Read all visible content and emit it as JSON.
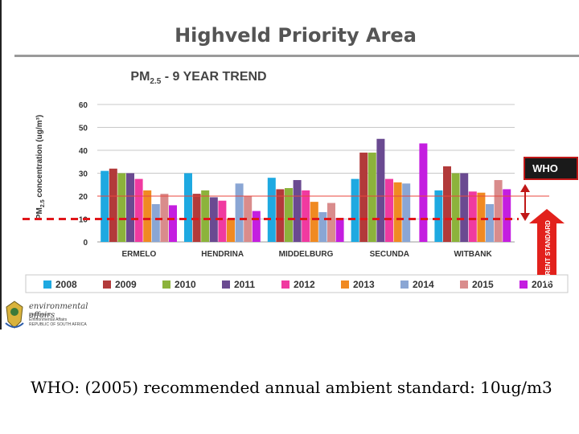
{
  "slide": {
    "title": "Highveld Priority Area",
    "footnote": "WHO: (2005) recommended annual ambient standard: 10ug/m3",
    "logo_text": "environmental affairs",
    "logo_subtext": [
      "Department:",
      "Environmental Affairs",
      "REPUBLIC OF SOUTH AFRICA"
    ]
  },
  "chart_data": {
    "type": "bar",
    "title_pre": "PM",
    "title_sub": "2.5",
    "title_post": " - 9 YEAR TREND",
    "ylabel_pre": "PM",
    "ylabel_sub": "2.5",
    "ylabel_post": " concentration  (ug/m³)",
    "ylim": [
      0,
      60
    ],
    "yticks": [
      "0",
      "10",
      "20",
      "30",
      "40",
      "50",
      "60"
    ],
    "grid": true,
    "categories": [
      "ERMELO",
      "HENDRINA",
      "MIDDELBURG",
      "SECUNDA",
      "WITBANK"
    ],
    "series": [
      {
        "name": "2008",
        "color": "#1ea9e1",
        "values": [
          31,
          30,
          28,
          27.5,
          22.5
        ]
      },
      {
        "name": "2009",
        "color": "#b23a3a",
        "values": [
          32,
          21,
          23,
          39,
          33
        ]
      },
      {
        "name": "2010",
        "color": "#8cb33b",
        "values": [
          30,
          22.5,
          23.5,
          39,
          30
        ]
      },
      {
        "name": "2011",
        "color": "#6a4a91",
        "values": [
          30,
          19.5,
          27,
          45,
          30
        ]
      },
      {
        "name": "2012",
        "color": "#f03aa0",
        "values": [
          27.5,
          18,
          22.5,
          27.5,
          22
        ]
      },
      {
        "name": "2013",
        "color": "#f08a22",
        "values": [
          22.5,
          10,
          17.5,
          26,
          21.5
        ]
      },
      {
        "name": "2014",
        "color": "#8aa6d4",
        "values": [
          16.5,
          25.5,
          13,
          25.5,
          16.5
        ]
      },
      {
        "name": "2015",
        "color": "#d98c8c",
        "values": [
          21,
          20,
          17,
          0,
          27
        ]
      },
      {
        "name": "2016",
        "color": "#c41ee0",
        "values": [
          16,
          13.5,
          10.5,
          43,
          23
        ]
      }
    ],
    "reference_lines": [
      {
        "label": "CURRENT STANDARD",
        "value": 20,
        "color": "#e8463d",
        "style": "solid"
      },
      {
        "label": "WHO",
        "value": 10,
        "color": "#e0161a",
        "style": "dashed"
      }
    ],
    "annotations": {
      "who_label": "WHO",
      "standard_label": "CURENT STANDARD"
    }
  }
}
